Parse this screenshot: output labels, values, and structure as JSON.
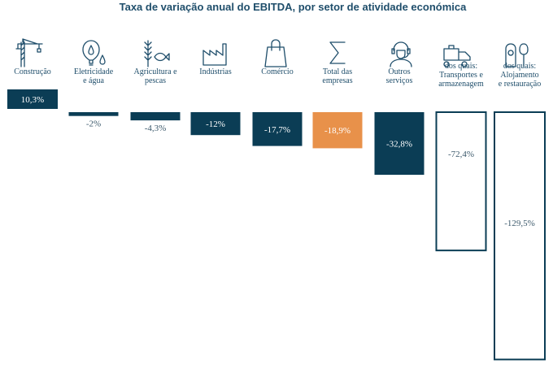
{
  "chart_data": {
    "type": "bar",
    "title": "Taxa de variação anual do EBITDA, por setor de atividade económica",
    "unit": "%",
    "categories": [
      {
        "lines": [
          "Construção"
        ],
        "icon": "crane-icon"
      },
      {
        "lines": [
          "Eletricidade",
          "e água"
        ],
        "icon": "lightbulb-drop-icon"
      },
      {
        "lines": [
          "Agricultura e",
          "pescas"
        ],
        "icon": "wheat-fish-icon"
      },
      {
        "lines": [
          "Indústrias"
        ],
        "icon": "factory-icon"
      },
      {
        "lines": [
          "Comércio"
        ],
        "icon": "shopping-bag-icon"
      },
      {
        "lines": [
          "Total das",
          "empresas"
        ],
        "icon": "sigma-icon"
      },
      {
        "lines": [
          "Outros",
          "serviços"
        ],
        "icon": "headset-person-icon"
      },
      {
        "lines": [
          "dos quais:",
          "Transportes e",
          "armazenagem"
        ],
        "icon": "delivery-truck-icon"
      },
      {
        "lines": [
          "dos quais:",
          "Alojamento",
          "e restauração"
        ],
        "icon": "door-hanger-spoon-icon"
      }
    ],
    "values": [
      10.3,
      -2,
      -4.3,
      -12,
      -17.7,
      -18.9,
      -32.8,
      -72.4,
      -129.5
    ],
    "value_labels": [
      "10,3%",
      "-2%",
      "-4,3%",
      "-12%",
      "-17,7%",
      "-18,9%",
      "-32,8%",
      "-72,4%",
      "-129,5%"
    ],
    "styles": [
      "solid",
      "solid",
      "solid",
      "solid",
      "solid",
      "highlight",
      "solid",
      "outline",
      "outline"
    ],
    "colors": {
      "solid": "#0b3d55",
      "highlight": "#e8914a",
      "outline": "#0b3d55",
      "text": "#1f4e6b",
      "label_dark": "#3d5a6c"
    }
  }
}
